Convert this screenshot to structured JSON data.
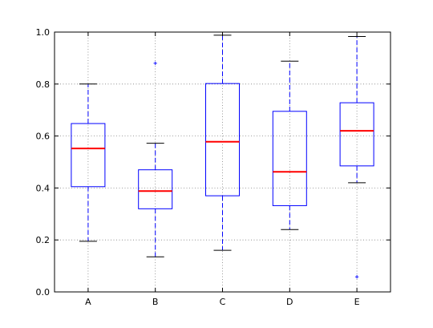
{
  "chart_data": {
    "type": "box",
    "categories": [
      "A",
      "B",
      "C",
      "D",
      "E"
    ],
    "ylim": [
      0.0,
      1.0
    ],
    "y_ticks": [
      0.0,
      0.2,
      0.4,
      0.6,
      0.8,
      1.0
    ],
    "y_tick_labels": [
      "0.0",
      "0.2",
      "0.4",
      "0.6",
      "0.8",
      "1.0"
    ],
    "grid": true,
    "boxes": [
      {
        "category": "A",
        "whisker_low": 0.195,
        "q1": 0.405,
        "median": 0.552,
        "q3": 0.648,
        "whisker_high": 0.8,
        "outliers": []
      },
      {
        "category": "B",
        "whisker_low": 0.135,
        "q1": 0.32,
        "median": 0.388,
        "q3": 0.47,
        "whisker_high": 0.572,
        "outliers": [
          0.88
        ]
      },
      {
        "category": "C",
        "whisker_low": 0.16,
        "q1": 0.37,
        "median": 0.578,
        "q3": 0.802,
        "whisker_high": 0.988,
        "outliers": []
      },
      {
        "category": "D",
        "whisker_low": 0.24,
        "q1": 0.332,
        "median": 0.462,
        "q3": 0.695,
        "whisker_high": 0.888,
        "outliers": []
      },
      {
        "category": "E",
        "whisker_low": 0.42,
        "q1": 0.485,
        "median": 0.62,
        "q3": 0.728,
        "whisker_high": 0.983,
        "outliers": [
          0.058
        ]
      }
    ],
    "colors": {
      "box": "#0000ff",
      "whisker": "#0000ff",
      "cap": "#000000",
      "median": "#ff0000",
      "outlier": "#0000ff",
      "grid": "#808080",
      "axes": "#000000"
    }
  }
}
